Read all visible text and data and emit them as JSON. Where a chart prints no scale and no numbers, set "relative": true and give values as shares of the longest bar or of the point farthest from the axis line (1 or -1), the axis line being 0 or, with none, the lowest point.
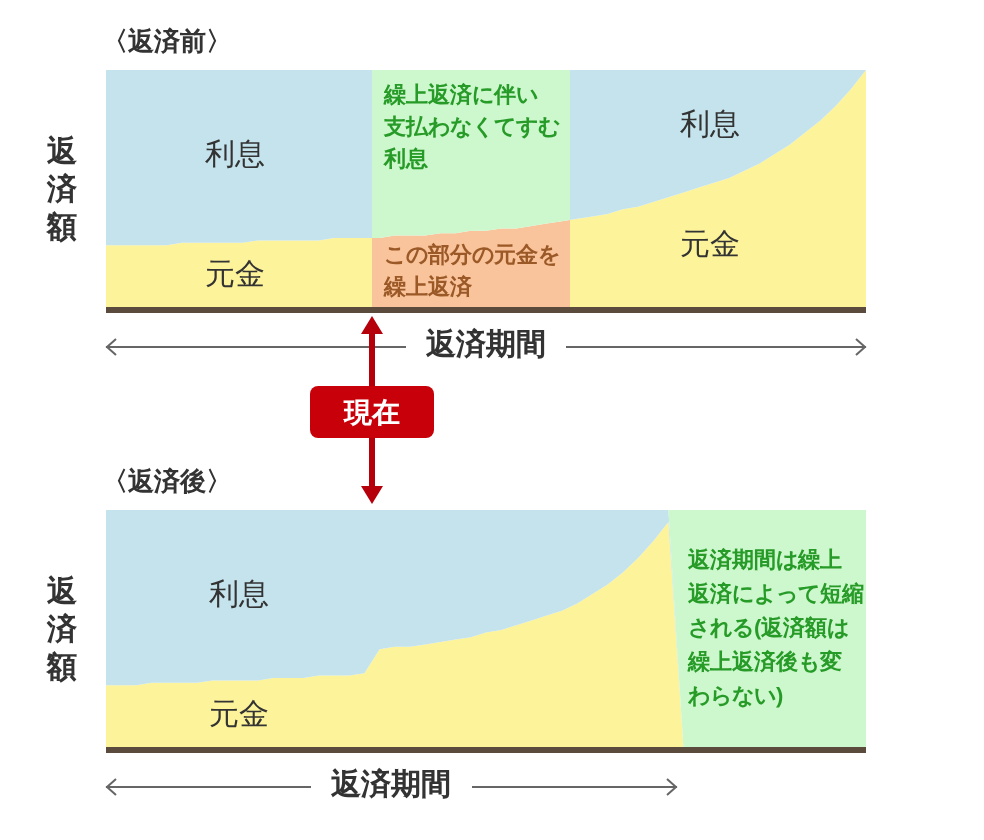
{
  "chart_data": [
    {
      "type": "area",
      "title": "〈返済前〉",
      "xlabel": "返済期間",
      "ylabel": "返済額",
      "relative": true,
      "stacked": true,
      "categories": [
        null,
        null,
        null,
        null,
        null,
        null,
        null,
        null,
        null,
        null,
        null,
        null,
        null,
        null,
        null,
        null,
        null,
        null,
        null,
        null,
        null,
        null,
        null,
        null,
        null,
        null,
        null,
        null,
        null,
        null,
        null,
        null,
        null,
        null,
        null,
        null,
        null,
        null,
        null,
        null,
        null,
        null,
        null,
        null,
        null,
        null,
        null,
        null,
        null,
        null,
        null
      ],
      "series": [
        {
          "name": "元金",
          "color": "#fdf39b",
          "colors": [
            "#fdf39b",
            "#fdf39b",
            "#fdf39b",
            "#fdf39b",
            "#fdf39b",
            "#fdf39b",
            "#fdf39b",
            "#fdf39b",
            "#fdf39b",
            "#fdf39b",
            "#fdf39b",
            "#fdf39b",
            "#fdf39b",
            "#fdf39b",
            "#fdf39b",
            "#fdf39b",
            "#fdf39b",
            "#fdf39b",
            "#f9c49b",
            "#f9c49b",
            "#f9c49b",
            "#f9c49b",
            "#f9c49b",
            "#f9c49b",
            "#f9c49b",
            "#f9c49b",
            "#f9c49b",
            "#f9c49b",
            "#f9c49b",
            "#f9c49b",
            "#f9c49b",
            "#fdf39b",
            "#fdf39b",
            "#fdf39b",
            "#fdf39b",
            "#fdf39b",
            "#fdf39b",
            "#fdf39b",
            "#fdf39b",
            "#fdf39b",
            "#fdf39b",
            "#fdf39b",
            "#fdf39b",
            "#fdf39b",
            "#fdf39b",
            "#fdf39b",
            "#fdf39b",
            "#fdf39b",
            "#fdf39b",
            "#fdf39b",
            "#fdf39b"
          ],
          "values": [
            0.27,
            0.27,
            0.27,
            0.27,
            0.27,
            0.28,
            0.28,
            0.28,
            0.28,
            0.28,
            0.29,
            0.29,
            0.29,
            0.29,
            0.29,
            0.3,
            0.3,
            0.3,
            0.3,
            0.31,
            0.31,
            0.31,
            0.32,
            0.32,
            0.33,
            0.33,
            0.34,
            0.34,
            0.35,
            0.36,
            0.37,
            0.38,
            0.39,
            0.4,
            0.42,
            0.43,
            0.45,
            0.47,
            0.49,
            0.51,
            0.53,
            0.55,
            0.58,
            0.61,
            0.65,
            0.69,
            0.74,
            0.79,
            0.85,
            0.92,
            1
          ]
        },
        {
          "name": "利息",
          "color": "#c5e3ec",
          "colors": [
            "#c5e3ec",
            "#c5e3ec",
            "#c5e3ec",
            "#c5e3ec",
            "#c5e3ec",
            "#c5e3ec",
            "#c5e3ec",
            "#c5e3ec",
            "#c5e3ec",
            "#c5e3ec",
            "#c5e3ec",
            "#c5e3ec",
            "#c5e3ec",
            "#c5e3ec",
            "#c5e3ec",
            "#c5e3ec",
            "#c5e3ec",
            "#c5e3ec",
            "#cdf7cd",
            "#cdf7cd",
            "#cdf7cd",
            "#cdf7cd",
            "#cdf7cd",
            "#cdf7cd",
            "#cdf7cd",
            "#cdf7cd",
            "#cdf7cd",
            "#cdf7cd",
            "#cdf7cd",
            "#cdf7cd",
            "#cdf7cd",
            "#c5e3ec",
            "#c5e3ec",
            "#c5e3ec",
            "#c5e3ec",
            "#c5e3ec",
            "#c5e3ec",
            "#c5e3ec",
            "#c5e3ec",
            "#c5e3ec",
            "#c5e3ec",
            "#c5e3ec",
            "#c5e3ec",
            "#c5e3ec",
            "#c5e3ec",
            "#c5e3ec",
            "#c5e3ec",
            "#c5e3ec",
            "#c5e3ec",
            "#c5e3ec",
            "#c5e3ec"
          ],
          "values": [
            0.73,
            0.73,
            0.73,
            0.73,
            0.73,
            0.72,
            0.72,
            0.72,
            0.72,
            0.72,
            0.71,
            0.71,
            0.71,
            0.71,
            0.71,
            0.7,
            0.7,
            0.7,
            0.7,
            0.69,
            0.69,
            0.69,
            0.68,
            0.68,
            0.67,
            0.67,
            0.66,
            0.66,
            0.65,
            0.64,
            0.63,
            0.62,
            0.61,
            0.6,
            0.58,
            0.57,
            0.55,
            0.53,
            0.51,
            0.49,
            0.47,
            0.45,
            0.42,
            0.39,
            0.35,
            0.31,
            0.26,
            0.21,
            0.15,
            0.08,
            0
          ]
        }
      ],
      "annotations": [
        "繰上返済に伴い支払わなくてすむ利息",
        "この部分の元金を繰上返済",
        "現在"
      ]
    },
    {
      "type": "area",
      "title": "〈返済後〉",
      "xlabel": "返済期間",
      "ylabel": "返済額",
      "relative": true,
      "stacked": true,
      "categories": [
        null,
        null,
        null,
        null,
        null,
        null,
        null,
        null,
        null,
        null,
        null,
        null,
        null,
        null,
        null,
        null,
        null,
        null,
        null,
        null,
        null,
        null,
        null,
        null,
        null,
        null,
        null,
        null,
        null,
        null,
        null,
        null,
        null,
        null,
        null,
        null,
        null,
        null,
        null,
        null,
        null,
        null,
        null,
        null,
        null,
        null,
        null,
        null,
        null,
        null,
        null
      ],
      "series": [
        {
          "name": "元金",
          "color": "#fdf39b",
          "values": [
            0.27,
            0.27,
            0.27,
            0.28,
            0.28,
            0.28,
            0.28,
            0.29,
            0.29,
            0.29,
            0.29,
            0.3,
            0.3,
            0.3,
            0.31,
            0.31,
            0.31,
            0.32,
            0.42,
            0.43,
            0.43,
            0.44,
            0.45,
            0.46,
            0.47,
            0.49,
            0.5,
            0.52,
            0.54,
            0.56,
            0.58,
            0.61,
            0.65,
            0.69,
            0.74,
            0.8,
            0.87,
            0.95,
            0,
            0,
            0,
            0,
            0,
            0,
            0,
            0,
            0,
            0,
            0,
            0,
            0
          ]
        },
        {
          "name": "利息",
          "color": "#c5e3ec",
          "values": [
            0.73,
            0.73,
            0.73,
            0.72,
            0.72,
            0.72,
            0.72,
            0.71,
            0.71,
            0.71,
            0.71,
            0.7,
            0.7,
            0.7,
            0.69,
            0.69,
            0.69,
            0.68,
            0.58,
            0.57,
            0.57,
            0.56,
            0.55,
            0.54,
            0.53,
            0.51,
            0.5,
            0.48,
            0.46,
            0.44,
            0.42,
            0.39,
            0.35,
            0.31,
            0.26,
            0.2,
            0.13,
            0.05,
            0,
            0,
            0,
            0,
            0,
            0,
            0,
            0,
            0,
            0,
            0,
            0,
            0
          ]
        },
        {
          "name": "返済期間は繰上返済によって短縮される(返済額は繰上返済後も変わらない)",
          "color": "#cdf7cd",
          "values": [
            null,
            null,
            null,
            null,
            null,
            null,
            null,
            null,
            null,
            null,
            null,
            null,
            null,
            null,
            null,
            null,
            null,
            null,
            null,
            null,
            null,
            null,
            null,
            null,
            null,
            null,
            null,
            null,
            null,
            null,
            null,
            null,
            null,
            null,
            null,
            null,
            null,
            0,
            1,
            1,
            1,
            1,
            1,
            1,
            1,
            1,
            1,
            1,
            1,
            1,
            1
          ]
        }
      ]
    }
  ]
}
